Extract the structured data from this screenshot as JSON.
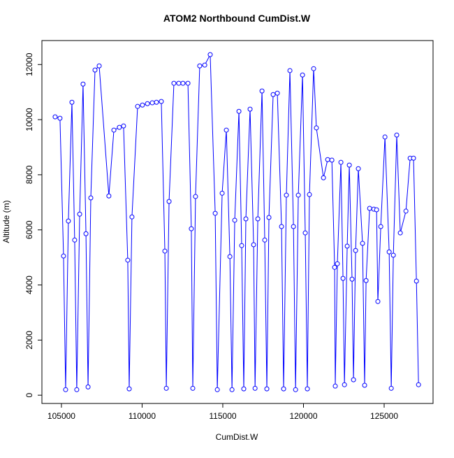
{
  "chart_data": {
    "type": "line",
    "title": "ATOM2 Northbound CumDist.W",
    "x_label": "CumDist.W",
    "y_label": "Altitude (m)",
    "x": [
      104610,
      104910,
      105130,
      105260,
      105430,
      105650,
      105820,
      105950,
      106130,
      106340,
      106520,
      106650,
      106820,
      107080,
      107340,
      107940,
      108250,
      108590,
      108850,
      109110,
      109200,
      109370,
      109720,
      110020,
      110330,
      110630,
      110890,
      111190,
      111410,
      111500,
      111670,
      111970,
      112270,
      112530,
      112840,
      113050,
      113140,
      113310,
      113570,
      113880,
      114220,
      114530,
      114660,
      114960,
      115220,
      115440,
      115570,
      115740,
      116000,
      116170,
      116300,
      116430,
      116690,
      116910,
      117000,
      117170,
      117430,
      117600,
      117730,
      117860,
      118120,
      118380,
      118640,
      118770,
      118940,
      119160,
      119380,
      119510,
      119680,
      119940,
      120110,
      120240,
      120370,
      120630,
      120800,
      121240,
      121500,
      121760,
      121930,
      121970,
      122100,
      122320,
      122450,
      122540,
      122710,
      122840,
      123010,
      123100,
      123230,
      123400,
      123660,
      123790,
      123880,
      124100,
      124360,
      124530,
      124610,
      124790,
      125050,
      125310,
      125440,
      125570,
      125780,
      126000,
      126350,
      126610,
      126820,
      127000,
      127130
    ],
    "series": [
      {
        "name": "Altitude",
        "color": "#0000ff",
        "values": [
          10100,
          10050,
          5050,
          200,
          6320,
          10630,
          5630,
          200,
          6570,
          11290,
          5860,
          300,
          7160,
          11800,
          11950,
          7230,
          9620,
          9720,
          9770,
          4900,
          230,
          6470,
          10480,
          10530,
          10580,
          10610,
          10630,
          10660,
          5230,
          250,
          7030,
          11320,
          11320,
          11320,
          11320,
          6040,
          250,
          7210,
          11950,
          11980,
          12360,
          6600,
          200,
          7330,
          9620,
          5030,
          200,
          6350,
          10300,
          5430,
          230,
          6400,
          10380,
          5460,
          250,
          6400,
          11040,
          5630,
          230,
          6450,
          10910,
          10960,
          6120,
          230,
          7260,
          11780,
          6120,
          200,
          7260,
          11620,
          5890,
          230,
          7280,
          11850,
          9700,
          7890,
          8550,
          8530,
          4640,
          330,
          4770,
          8450,
          4240,
          380,
          5410,
          8350,
          4210,
          560,
          5250,
          8220,
          5510,
          360,
          4160,
          6780,
          6750,
          6730,
          3400,
          6120,
          9370,
          5200,
          250,
          5080,
          9440,
          5890,
          6680,
          8600,
          8600,
          4140,
          380
        ]
      }
    ],
    "xlim": [
      103790,
      128030
    ],
    "ylim": [
      -300,
      12870
    ],
    "xticks": [
      105000,
      110000,
      115000,
      120000,
      125000
    ],
    "yticks": [
      0,
      2000,
      4000,
      6000,
      8000,
      10000,
      12000
    ]
  }
}
